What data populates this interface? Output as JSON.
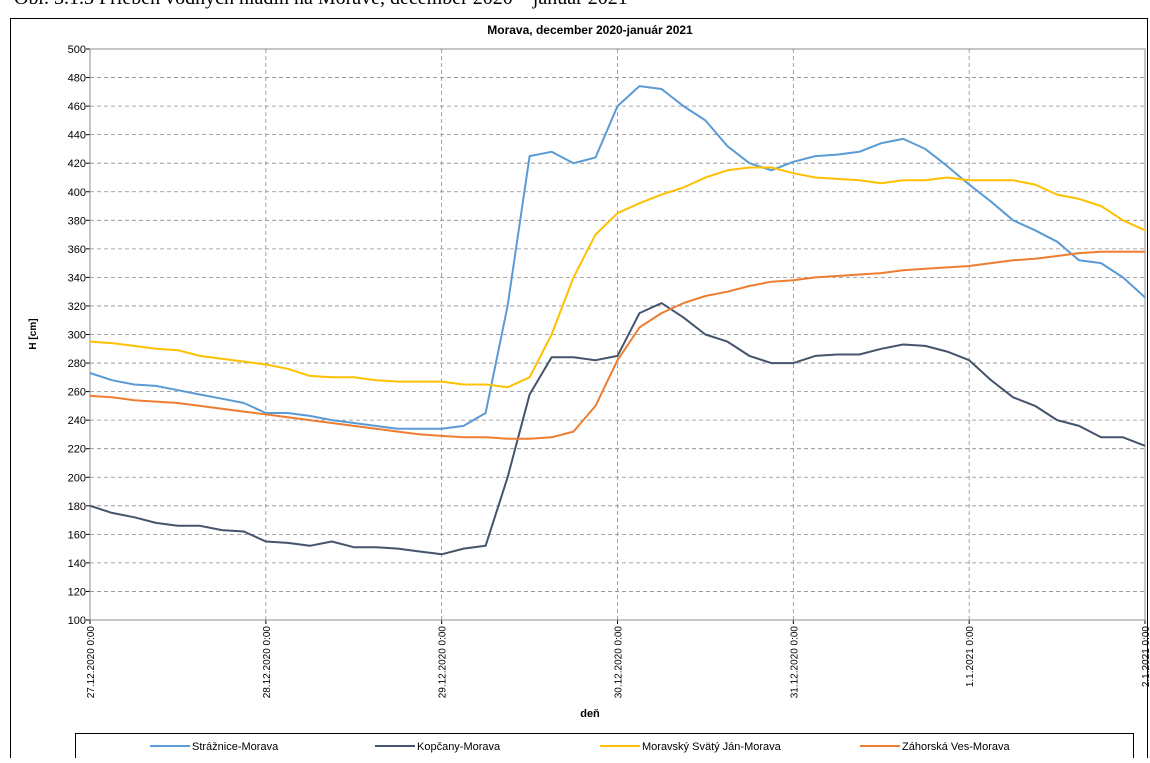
{
  "caption": "Obr. 3.1.3 Priebeh vodných hladín na Morave, december 2020 – január 2021",
  "chart_data": {
    "type": "line",
    "title": "Morava, december 2020-január 2021",
    "x_label": "deň",
    "y_label": "H [cm]",
    "x": [
      "27.12.2020 0:00",
      "27.12.2020 3:00",
      "27.12.2020 6:00",
      "27.12.2020 9:00",
      "27.12.2020 12:00",
      "27.12.2020 15:00",
      "27.12.2020 18:00",
      "27.12.2020 21:00",
      "28.12.2020 0:00",
      "28.12.2020 3:00",
      "28.12.2020 6:00",
      "28.12.2020 9:00",
      "28.12.2020 12:00",
      "28.12.2020 15:00",
      "28.12.2020 18:00",
      "28.12.2020 21:00",
      "29.12.2020 0:00",
      "29.12.2020 3:00",
      "29.12.2020 6:00",
      "29.12.2020 9:00",
      "29.12.2020 12:00",
      "29.12.2020 15:00",
      "29.12.2020 18:00",
      "29.12.2020 21:00",
      "30.12.2020 0:00",
      "30.12.2020 3:00",
      "30.12.2020 6:00",
      "30.12.2020 9:00",
      "30.12.2020 12:00",
      "30.12.2020 15:00",
      "30.12.2020 18:00",
      "30.12.2020 21:00",
      "31.12.2020 0:00",
      "31.12.2020 3:00",
      "31.12.2020 6:00",
      "31.12.2020 9:00",
      "31.12.2020 12:00",
      "31.12.2020 15:00",
      "31.12.2020 18:00",
      "31.12.2020 21:00",
      "1.1.2021 0:00",
      "1.1.2021 3:00",
      "1.1.2021 6:00",
      "1.1.2021 9:00",
      "1.1.2021 12:00",
      "1.1.2021 15:00",
      "1.1.2021 18:00",
      "1.1.2021 21:00",
      "2.1.2021 0:00"
    ],
    "series": [
      {
        "name": "Strážnice-Morava",
        "color": "#5b9bd5",
        "values": [
          273,
          268,
          265,
          264,
          261,
          258,
          255,
          252,
          245,
          245,
          243,
          240,
          238,
          236,
          234,
          234,
          234,
          236,
          245,
          320,
          425,
          428,
          420,
          424,
          460,
          474,
          472,
          460,
          450,
          432,
          420,
          415,
          421,
          425,
          426,
          428,
          434,
          437,
          430,
          418,
          405,
          393,
          380,
          373,
          365,
          352,
          350,
          340,
          326
        ]
      },
      {
        "name": "Kopčany-Morava",
        "color": "#44546a",
        "values": [
          180,
          175,
          172,
          168,
          166,
          166,
          163,
          162,
          155,
          154,
          152,
          155,
          151,
          151,
          150,
          148,
          146,
          150,
          152,
          200,
          258,
          284,
          284,
          282,
          285,
          315,
          322,
          312,
          300,
          295,
          285,
          280,
          280,
          285,
          286,
          286,
          290,
          293,
          292,
          288,
          282,
          268,
          256,
          250,
          240,
          236,
          228,
          228,
          222
        ]
      },
      {
        "name": "Moravský Svätý Ján-Morava",
        "color": "#ffc000",
        "values": [
          295,
          294,
          292,
          290,
          289,
          285,
          283,
          281,
          279,
          276,
          271,
          270,
          270,
          268,
          267,
          267,
          267,
          265,
          265,
          263,
          270,
          300,
          340,
          370,
          385,
          392,
          398,
          403,
          410,
          415,
          417,
          417,
          413,
          410,
          409,
          408,
          406,
          408,
          408,
          410,
          408,
          408,
          408,
          405,
          398,
          395,
          390,
          380,
          373
        ]
      },
      {
        "name": "Záhorská Ves-Morava",
        "color": "#ed7d31",
        "values": [
          257,
          256,
          254,
          253,
          252,
          250,
          248,
          246,
          244,
          242,
          240,
          238,
          236,
          234,
          232,
          230,
          229,
          228,
          228,
          227,
          227,
          228,
          232,
          250,
          282,
          305,
          315,
          322,
          327,
          330,
          334,
          337,
          338,
          340,
          341,
          342,
          343,
          345,
          346,
          347,
          348,
          350,
          352,
          353,
          355,
          357,
          358,
          358,
          358
        ]
      }
    ],
    "xlim": [
      "27.12.2020 0:00",
      "2.1.2021 0:00"
    ],
    "xticks": [
      "27.12.2020 0:00",
      "28.12.2020 0:00",
      "29.12.2020 0:00",
      "30.12.2020 0:00",
      "31.12.2020 0:00",
      "1.1.2021 0:00",
      "2.1.2021 0:00"
    ],
    "ylim": [
      100,
      500
    ],
    "yticks": [
      100,
      120,
      140,
      160,
      180,
      200,
      220,
      240,
      260,
      280,
      300,
      320,
      340,
      360,
      380,
      400,
      420,
      440,
      460,
      480,
      500
    ],
    "grid": true,
    "legend": "bottom"
  }
}
